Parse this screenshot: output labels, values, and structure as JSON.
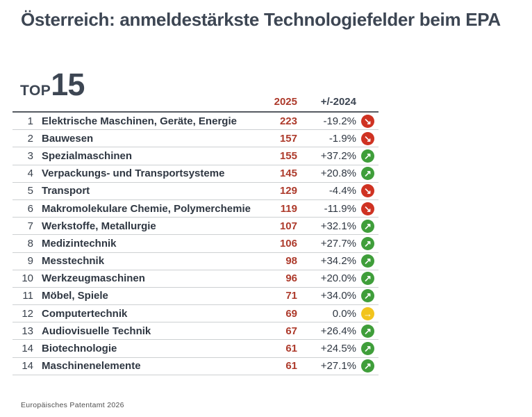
{
  "header": {
    "title": "Österreich: anmeldestärkste Technologiefelder beim EPA"
  },
  "top_badge": {
    "label": "TOP",
    "number": "15"
  },
  "chart_data": {
    "type": "table",
    "title": "Österreich: anmeldestärkste Technologiefelder beim EPA",
    "subtitle": "TOP 15",
    "columns": {
      "year": "2025",
      "change": "+/-2024"
    },
    "rows": [
      {
        "rank": "1",
        "name": "Elektrische Maschinen, Geräte, Energie",
        "value": "223",
        "change": "-19.2%",
        "trend": "down"
      },
      {
        "rank": "2",
        "name": "Bauwesen",
        "value": "157",
        "change": "-1.9%",
        "trend": "down"
      },
      {
        "rank": "3",
        "name": "Spezialmaschinen",
        "value": "155",
        "change": "+37.2%",
        "trend": "up"
      },
      {
        "rank": "4",
        "name": "Verpackungs- und Transportsysteme",
        "value": "145",
        "change": "+20.8%",
        "trend": "up"
      },
      {
        "rank": "5",
        "name": "Transport",
        "value": "129",
        "change": "-4.4%",
        "trend": "down"
      },
      {
        "rank": "6",
        "name": "Makromolekulare Chemie, Polymerchemie",
        "value": "119",
        "change": "-11.9%",
        "trend": "down"
      },
      {
        "rank": "7",
        "name": "Werkstoffe, Metallurgie",
        "value": "107",
        "change": "+32.1%",
        "trend": "up"
      },
      {
        "rank": "8",
        "name": "Medizintechnik",
        "value": "106",
        "change": "+27.7%",
        "trend": "up"
      },
      {
        "rank": "9",
        "name": "Messtechnik",
        "value": "98",
        "change": "+34.2%",
        "trend": "up"
      },
      {
        "rank": "10",
        "name": "Werkzeugmaschinen",
        "value": "96",
        "change": "+20.0%",
        "trend": "up"
      },
      {
        "rank": "11",
        "name": "Möbel, Spiele",
        "value": "71",
        "change": "+34.0%",
        "trend": "up"
      },
      {
        "rank": "12",
        "name": "Computertechnik",
        "value": "69",
        "change": "0.0%",
        "trend": "flat"
      },
      {
        "rank": "13",
        "name": "Audiovisuelle Technik",
        "value": "67",
        "change": "+26.4%",
        "trend": "up"
      },
      {
        "rank": "14",
        "name": "Biotechnologie",
        "value": "61",
        "change": "+24.5%",
        "trend": "up"
      },
      {
        "rank": "14",
        "name": "Maschinenelemente",
        "value": "61",
        "change": "+27.1%",
        "trend": "up"
      }
    ]
  },
  "icons": {
    "up": {
      "name": "trend-up-icon",
      "glyph": "↗",
      "color": "#3f9e3a"
    },
    "down": {
      "name": "trend-down-icon",
      "glyph": "↘",
      "color": "#cf3222"
    },
    "flat": {
      "name": "trend-flat-icon",
      "glyph": "→",
      "color": "#f2c41d"
    }
  },
  "colors": {
    "heading": "#3d4653",
    "accent_red": "#ad3a2b",
    "trend_up": "#3f9e3a",
    "trend_down": "#cf3222",
    "trend_flat": "#f2c41d"
  },
  "footer": {
    "source": "Europäisches Patentamt 2026"
  }
}
